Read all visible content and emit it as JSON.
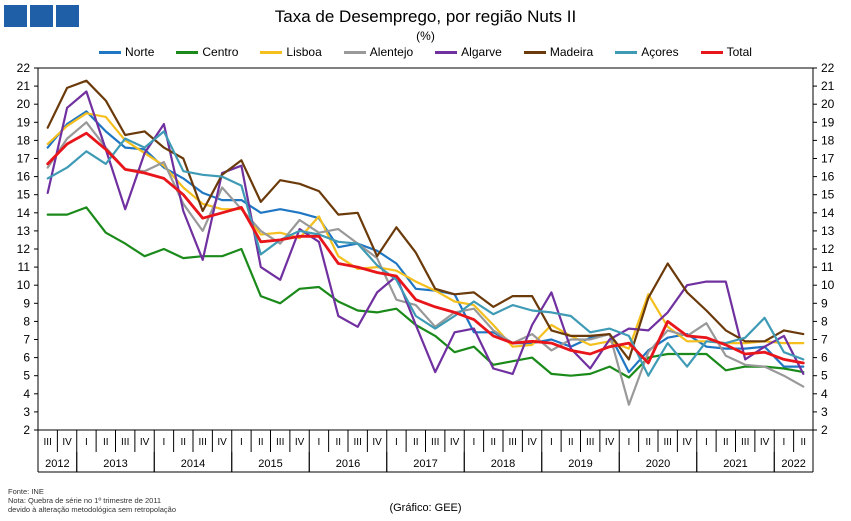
{
  "header": {
    "title": "Taxa de Desemprego, por região Nuts II",
    "subtitle": "(%)"
  },
  "colors": {
    "logo": "#1f5fa8",
    "grid": "#d9d9d9"
  },
  "notes": {
    "source": "Fonte: INE",
    "note1": "Nota: Quebra de série no 1º trimestre de 2011",
    "note2": "devido à alteração metodológica sem retropolação",
    "credit": "(Gráfico: GEE)"
  },
  "chart_data": {
    "type": "line",
    "title": "Taxa de Desemprego, por região Nuts II",
    "subtitle": "(%)",
    "ylim": [
      2,
      22
    ],
    "yticks": [
      2,
      3,
      4,
      5,
      6,
      7,
      8,
      9,
      10,
      11,
      12,
      13,
      14,
      15,
      16,
      17,
      18,
      19,
      20,
      21,
      22
    ],
    "y_axis_both_sides": true,
    "legend_position": "top",
    "grid": false,
    "quarters": [
      "III",
      "IV",
      "I",
      "II",
      "III",
      "IV",
      "I",
      "II",
      "III",
      "IV",
      "I",
      "II",
      "III",
      "IV",
      "I",
      "II",
      "III",
      "IV",
      "I",
      "II",
      "III",
      "IV",
      "I",
      "II",
      "III",
      "IV",
      "I",
      "II",
      "III",
      "IV",
      "I",
      "II",
      "III",
      "IV",
      "I",
      "II",
      "III",
      "IV",
      "I",
      "II"
    ],
    "years": [
      {
        "label": "2012",
        "start": 0,
        "end": 1
      },
      {
        "label": "2013",
        "start": 2,
        "end": 5
      },
      {
        "label": "2014",
        "start": 6,
        "end": 9
      },
      {
        "label": "2015",
        "start": 10,
        "end": 13
      },
      {
        "label": "2016",
        "start": 14,
        "end": 17
      },
      {
        "label": "2017",
        "start": 18,
        "end": 21
      },
      {
        "label": "2018",
        "start": 22,
        "end": 25
      },
      {
        "label": "2019",
        "start": 26,
        "end": 29
      },
      {
        "label": "2020",
        "start": 30,
        "end": 33
      },
      {
        "label": "2021",
        "start": 34,
        "end": 37
      },
      {
        "label": "2022",
        "start": 38,
        "end": 39
      }
    ],
    "series": [
      {
        "name": "Norte",
        "color": "#1f77c4",
        "width": 2.2,
        "values": [
          17.6,
          18.9,
          19.6,
          18.5,
          17.6,
          17.5,
          16.5,
          15.9,
          15.1,
          14.7,
          14.7,
          14.0,
          14.2,
          14.0,
          13.7,
          12.1,
          12.3,
          11.9,
          11.2,
          9.8,
          9.7,
          9.5,
          7.4,
          7.4,
          6.8,
          6.8,
          7.0,
          6.6,
          7.1,
          7.3,
          5.2,
          6.4,
          7.1,
          7.3,
          6.6,
          6.5,
          6.5,
          6.6,
          5.5,
          5.5
        ]
      },
      {
        "name": "Centro",
        "color": "#1a8a1a",
        "width": 2.2,
        "values": [
          13.9,
          13.9,
          14.3,
          12.9,
          12.3,
          11.6,
          12.0,
          11.5,
          11.6,
          11.6,
          12.0,
          9.4,
          9.0,
          9.8,
          9.9,
          9.1,
          8.6,
          8.5,
          8.7,
          7.8,
          7.2,
          6.3,
          6.6,
          5.6,
          5.8,
          6.0,
          5.1,
          5.0,
          5.1,
          5.5,
          4.9,
          6.0,
          6.2,
          6.2,
          6.2,
          5.3,
          5.5,
          5.5,
          5.4,
          5.2
        ]
      },
      {
        "name": "Lisboa",
        "color": "#f5bf1e",
        "width": 2.2,
        "values": [
          17.8,
          18.8,
          19.5,
          19.3,
          18.0,
          17.3,
          16.6,
          15.4,
          14.5,
          14.2,
          14.2,
          12.8,
          12.9,
          12.6,
          13.8,
          11.6,
          10.9,
          11.0,
          10.8,
          10.2,
          9.7,
          9.1,
          8.9,
          7.8,
          6.6,
          6.7,
          7.8,
          7.2,
          6.7,
          6.9,
          6.5,
          9.5,
          7.7,
          6.9,
          6.9,
          6.8,
          6.8,
          6.9,
          6.8,
          6.8
        ]
      },
      {
        "name": "Alentejo",
        "color": "#999999",
        "width": 2.2,
        "values": [
          16.5,
          18.1,
          19.0,
          17.6,
          16.4,
          16.3,
          16.8,
          14.5,
          13.0,
          15.4,
          14.2,
          13.0,
          12.3,
          13.6,
          12.9,
          13.1,
          12.3,
          11.5,
          9.2,
          8.9,
          7.7,
          8.5,
          8.7,
          7.5,
          6.8,
          7.3,
          6.4,
          7.0,
          7.0,
          7.3,
          3.4,
          6.3,
          7.5,
          7.2,
          7.9,
          6.1,
          5.6,
          5.5,
          5.0,
          4.4
        ]
      },
      {
        "name": "Algarve",
        "color": "#7030a0",
        "width": 2.2,
        "values": [
          15.1,
          19.8,
          20.7,
          17.5,
          14.2,
          17.3,
          18.9,
          14.1,
          11.4,
          16.2,
          16.6,
          11.0,
          10.3,
          13.1,
          12.4,
          8.3,
          7.7,
          9.6,
          10.5,
          7.8,
          5.2,
          7.4,
          7.6,
          5.4,
          5.1,
          7.8,
          9.6,
          6.5,
          5.4,
          7.0,
          7.6,
          7.5,
          8.5,
          10.0,
          10.2,
          10.2,
          5.9,
          6.6,
          7.2,
          5.1
        ]
      },
      {
        "name": "Madeira",
        "color": "#6b3a0a",
        "width": 2.2,
        "values": [
          18.7,
          20.9,
          21.3,
          20.2,
          18.3,
          18.5,
          17.6,
          17.0,
          14.1,
          16.1,
          16.9,
          14.6,
          15.8,
          15.6,
          15.2,
          13.9,
          14.0,
          11.6,
          13.2,
          11.8,
          9.8,
          9.5,
          9.6,
          8.8,
          9.4,
          9.4,
          7.5,
          7.2,
          7.2,
          7.3,
          5.9,
          9.3,
          11.2,
          9.6,
          8.6,
          7.5,
          6.9,
          6.9,
          7.5,
          7.3
        ]
      },
      {
        "name": "Açores",
        "color": "#3f9bb5",
        "width": 2.2,
        "values": [
          15.9,
          16.5,
          17.4,
          16.7,
          18.1,
          17.6,
          18.5,
          16.3,
          16.1,
          16.0,
          15.5,
          11.7,
          12.5,
          13.0,
          12.8,
          12.4,
          12.3,
          11.1,
          10.3,
          8.3,
          7.6,
          8.3,
          9.1,
          8.4,
          8.9,
          8.6,
          8.5,
          8.3,
          7.4,
          7.6,
          7.2,
          5.0,
          6.8,
          5.5,
          6.9,
          6.8,
          7.1,
          8.2,
          6.3,
          5.9
        ]
      },
      {
        "name": "Total",
        "color": "#e8161b",
        "width": 2.8,
        "values": [
          16.7,
          17.8,
          18.4,
          17.5,
          16.4,
          16.2,
          15.9,
          15.0,
          13.7,
          14.0,
          14.3,
          12.4,
          12.5,
          12.7,
          12.7,
          11.2,
          11.0,
          10.7,
          10.5,
          9.2,
          8.8,
          8.5,
          8.1,
          7.2,
          6.8,
          6.9,
          6.8,
          6.4,
          6.2,
          6.6,
          6.8,
          5.7,
          8.0,
          7.2,
          7.1,
          6.7,
          6.2,
          6.3,
          5.9,
          5.7
        ]
      }
    ]
  }
}
